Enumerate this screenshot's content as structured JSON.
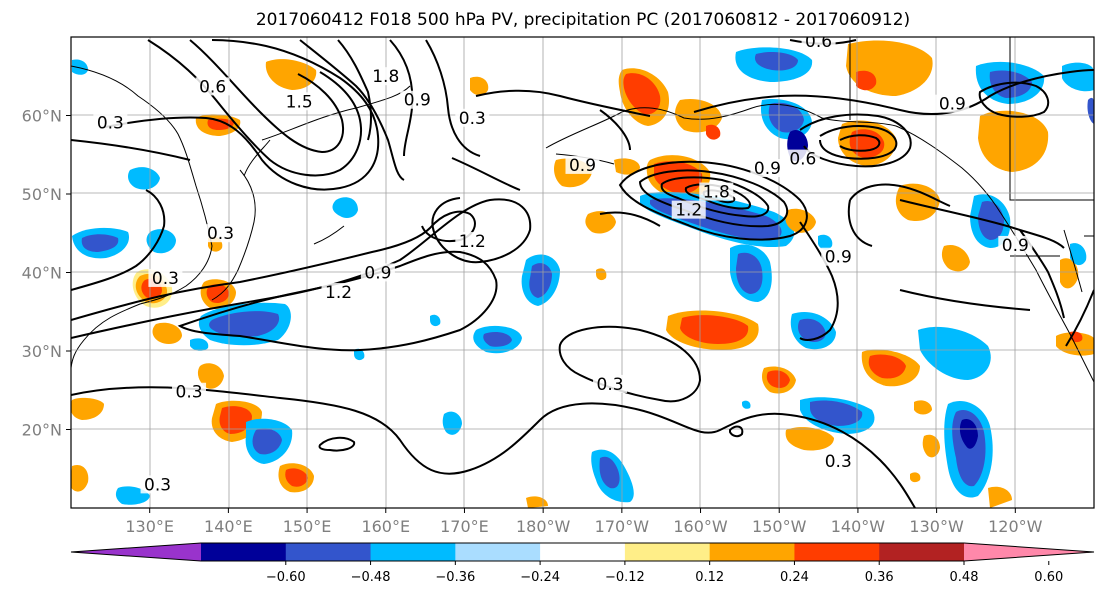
{
  "title": "2017060412 F018 500 hPa PV, precipitation PC (2017060812 - 2017060912)",
  "map": {
    "lat_ticks": [
      {
        "label": "60°N",
        "lat": 60
      },
      {
        "label": "50°N",
        "lat": 50
      },
      {
        "label": "40°N",
        "lat": 40
      },
      {
        "label": "30°N",
        "lat": 30
      },
      {
        "label": "20°N",
        "lat": 20
      }
    ],
    "lon_ticks": [
      {
        "label": "130°E",
        "lon": 130
      },
      {
        "label": "140°E",
        "lon": 140
      },
      {
        "label": "150°E",
        "lon": 150
      },
      {
        "label": "160°E",
        "lon": 160
      },
      {
        "label": "170°E",
        "lon": 170
      },
      {
        "label": "180°W",
        "lon": 180
      },
      {
        "label": "170°W",
        "lon": 190
      },
      {
        "label": "160°W",
        "lon": 200
      },
      {
        "label": "150°W",
        "lon": 210
      },
      {
        "label": "140°W",
        "lon": 220
      },
      {
        "label": "130°W",
        "lon": 230
      },
      {
        "label": "120°W",
        "lon": 240
      }
    ],
    "contour_labels": [
      {
        "text": "0.6",
        "lon": 138.0,
        "lat": 63.2
      },
      {
        "text": "0.3",
        "lon": 125.0,
        "lat": 58.6
      },
      {
        "text": "1.8",
        "lon": 160.0,
        "lat": 64.5
      },
      {
        "text": "1.5",
        "lon": 149.0,
        "lat": 61.3
      },
      {
        "text": "0.9",
        "lon": 164.0,
        "lat": 61.5
      },
      {
        "text": "0.3",
        "lon": 171.0,
        "lat": 59.2
      },
      {
        "text": "0.9",
        "lon": 185.0,
        "lat": 53.2
      },
      {
        "text": "1.2",
        "lon": 171.0,
        "lat": 43.5
      },
      {
        "text": "0.9",
        "lon": 159.0,
        "lat": 39.5
      },
      {
        "text": "1.2",
        "lon": 154.0,
        "lat": 37.0
      },
      {
        "text": "0.3",
        "lon": 132.0,
        "lat": 38.8
      },
      {
        "text": "0.3",
        "lon": 139.0,
        "lat": 44.5
      },
      {
        "text": "0.3",
        "lon": 135.0,
        "lat": 24.3
      },
      {
        "text": "0.3",
        "lon": 188.5,
        "lat": 25.3
      },
      {
        "text": "0.6",
        "lon": 215.0,
        "lat": 69.0
      },
      {
        "text": "0.9",
        "lon": 232.0,
        "lat": 61.0
      },
      {
        "text": "0.9",
        "lon": 208.5,
        "lat": 52.8
      },
      {
        "text": "1.8",
        "lon": 202.0,
        "lat": 49.8
      },
      {
        "text": "1.2",
        "lon": 198.5,
        "lat": 47.5
      },
      {
        "text": "0.9",
        "lon": 217.5,
        "lat": 41.5
      },
      {
        "text": "0.6",
        "lon": 213.0,
        "lat": 54.0
      },
      {
        "text": "0.3",
        "lon": 217.5,
        "lat": 15.5
      },
      {
        "text": "0.9",
        "lon": 240.0,
        "lat": 43.0
      },
      {
        "text": "0.3",
        "lon": 131.0,
        "lat": 12.5
      }
    ]
  },
  "colorbar": {
    "colors": [
      "#9933CC",
      "#000099",
      "#3355CC",
      "#00BBFF",
      "#AADDFF",
      "#FFFFFF",
      "#FFEE88",
      "#FFA500",
      "#FF3D00",
      "#B22222",
      "#FF88AA"
    ],
    "tick_labels": [
      "−0.60",
      "−0.48",
      "−0.36",
      "−0.24",
      "−0.12",
      "0.12",
      "0.24",
      "0.36",
      "0.48",
      "0.60"
    ]
  }
}
